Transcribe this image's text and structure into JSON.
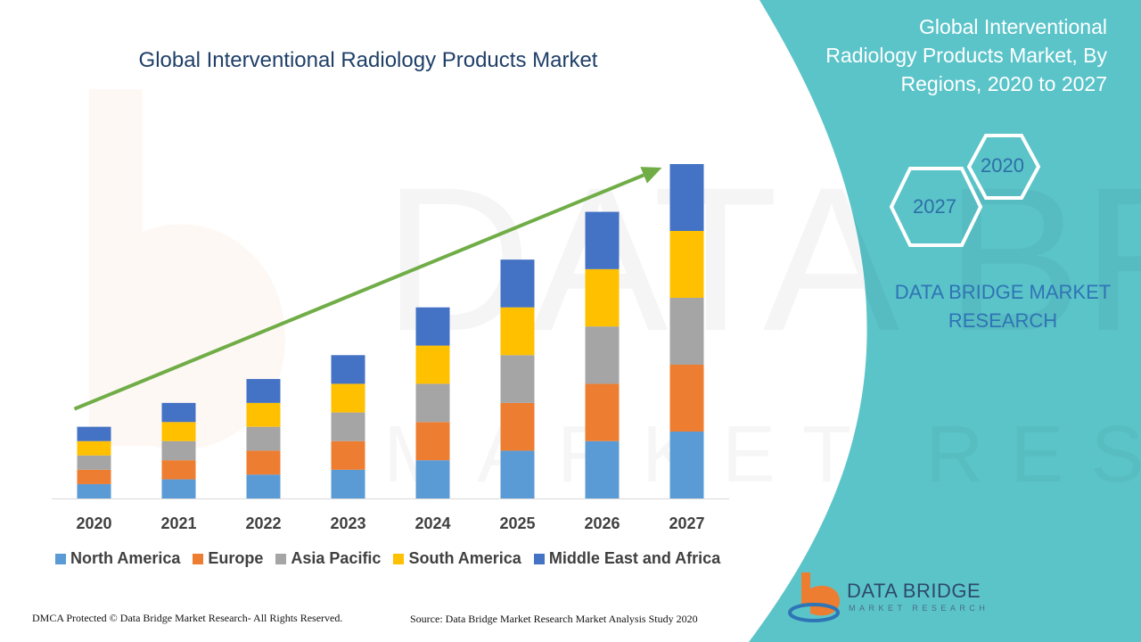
{
  "chart_title": "Global Interventional Radiology Products Market",
  "panel": {
    "title_lines": [
      "Global Interventional",
      "Radiology Products Market, By",
      "Regions, 2020 to 2027"
    ],
    "hex_start": "2020",
    "hex_end": "2027",
    "brand_lines": [
      "DATA BRIDGE MARKET",
      "RESEARCH"
    ]
  },
  "footer": {
    "copyright": "DMCA Protected © Data Bridge Market Research- All Rights Reserved.",
    "source": "Source: Data Bridge Market Research Market Analysis Study 2020"
  },
  "logo": {
    "name": "DATA BRIDGE",
    "tagline": "MARKET RESEARCH"
  },
  "colors": {
    "panel": "#5bc4c9",
    "arrow": "#70ad47",
    "title": "#1f3f68"
  },
  "chart_data": {
    "type": "bar",
    "stacked": true,
    "categories": [
      "2020",
      "2021",
      "2022",
      "2023",
      "2024",
      "2025",
      "2026",
      "2027"
    ],
    "series": [
      {
        "name": "North America",
        "color": "#5b9bd5",
        "values": [
          3,
          4,
          5,
          6,
          8,
          10,
          12,
          14
        ]
      },
      {
        "name": "Europe",
        "color": "#ed7d31",
        "values": [
          3,
          4,
          5,
          6,
          8,
          10,
          12,
          14
        ]
      },
      {
        "name": "Asia Pacific",
        "color": "#a5a5a5",
        "values": [
          3,
          4,
          5,
          6,
          8,
          10,
          12,
          14
        ]
      },
      {
        "name": "South America",
        "color": "#ffc000",
        "values": [
          3,
          4,
          5,
          6,
          8,
          10,
          12,
          14
        ]
      },
      {
        "name": "Middle East and Africa",
        "color": "#4472c4",
        "values": [
          3,
          4,
          5,
          6,
          8,
          10,
          12,
          14
        ]
      }
    ],
    "ylim": [
      0,
      70
    ],
    "grid": false,
    "legend": "bottom",
    "trend_arrow": true
  }
}
